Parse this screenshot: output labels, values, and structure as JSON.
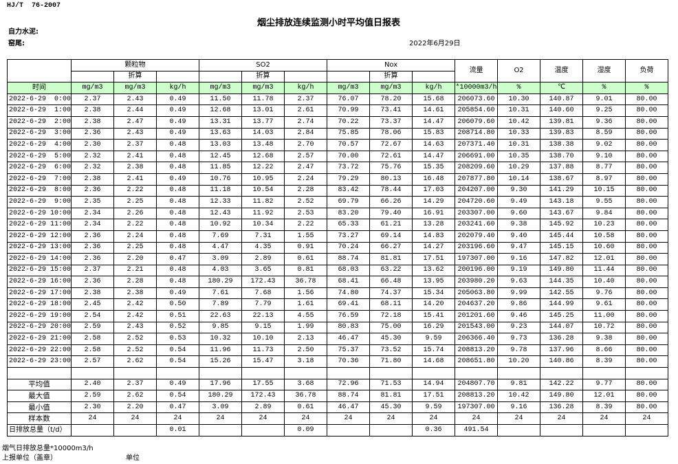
{
  "header": {
    "standard": "HJ/T  76-2007",
    "title": "烟尘排放连续监测小时平均值日报表",
    "company": "自力水泥:",
    "unit": "窑尾:",
    "date": "2022年6月29日"
  },
  "table": {
    "groups": [
      {
        "name": "颗粒物",
        "sub": "折算"
      },
      {
        "name": "SO2",
        "sub": "折算"
      },
      {
        "name": "Nox",
        "sub": "折算"
      }
    ],
    "extra_headers": [
      "流量",
      "O2",
      "温度",
      "湿度",
      "负荷"
    ],
    "time_header": "时间",
    "units": [
      "mg/m3",
      "mg/m3",
      "kg/h",
      "mg/m3",
      "mg/m3",
      "kg/h",
      "mg/m3",
      "mg/m3",
      "kg/h",
      "*10000m3/h",
      "%",
      "℃",
      "%",
      "%"
    ],
    "rows": [
      {
        "time": "2022-6-29  0:00",
        "values": [
          "2.37",
          "2.43",
          "0.49",
          "11.50",
          "11.78",
          "2.37",
          "76.07",
          "78.20",
          "15.68",
          "206073.60",
          "10.30",
          "140.87",
          "9.01",
          "80.00"
        ]
      },
      {
        "time": "2022-6-29  1:00",
        "values": [
          "2.38",
          "2.44",
          "0.49",
          "12.68",
          "13.01",
          "2.61",
          "70.99",
          "73.41",
          "14.61",
          "205854.60",
          "10.31",
          "140.60",
          "9.25",
          "80.00"
        ]
      },
      {
        "time": "2022-6-29  2:00",
        "values": [
          "2.38",
          "2.47",
          "0.49",
          "13.31",
          "13.77",
          "2.74",
          "70.22",
          "73.37",
          "14.47",
          "206079.60",
          "10.42",
          "139.81",
          "9.36",
          "80.00"
        ]
      },
      {
        "time": "2022-6-29  3:00",
        "values": [
          "2.36",
          "2.43",
          "0.49",
          "13.63",
          "14.03",
          "2.84",
          "75.85",
          "78.06",
          "15.83",
          "208714.80",
          "10.33",
          "139.83",
          "8.59",
          "80.00"
        ]
      },
      {
        "time": "2022-6-29  4:00",
        "values": [
          "2.30",
          "2.37",
          "0.48",
          "13.03",
          "13.48",
          "2.70",
          "70.57",
          "72.67",
          "14.63",
          "207371.40",
          "10.31",
          "138.38",
          "9.02",
          "80.00"
        ]
      },
      {
        "time": "2022-6-29  5:00",
        "values": [
          "2.32",
          "2.41",
          "0.48",
          "12.45",
          "12.68",
          "2.57",
          "70.00",
          "72.61",
          "14.47",
          "206691.00",
          "10.35",
          "138.70",
          "9.10",
          "80.00"
        ]
      },
      {
        "time": "2022-6-29  6:00",
        "values": [
          "2.32",
          "2.38",
          "0.48",
          "11.85",
          "12.22",
          "2.47",
          "73.72",
          "75.76",
          "15.35",
          "208209.60",
          "10.29",
          "137.88",
          "8.77",
          "80.00"
        ]
      },
      {
        "time": "2022-6-29  7:00",
        "values": [
          "2.38",
          "2.41",
          "0.49",
          "10.76",
          "10.95",
          "2.24",
          "79.29",
          "80.13",
          "16.48",
          "207877.80",
          "10.14",
          "138.67",
          "8.97",
          "80.00"
        ]
      },
      {
        "time": "2022-6-29  8:00",
        "values": [
          "2.36",
          "2.22",
          "0.48",
          "11.18",
          "10.54",
          "2.28",
          "83.42",
          "78.44",
          "17.03",
          "204207.00",
          "9.30",
          "141.29",
          "10.15",
          "80.00"
        ]
      },
      {
        "time": "2022-6-29  9:00",
        "values": [
          "2.35",
          "2.25",
          "0.48",
          "12.33",
          "11.82",
          "2.52",
          "69.79",
          "66.26",
          "14.29",
          "204720.60",
          "9.49",
          "143.18",
          "9.55",
          "80.00"
        ]
      },
      {
        "time": "2022-6-29 10:00",
        "values": [
          "2.34",
          "2.26",
          "0.48",
          "12.43",
          "11.92",
          "2.53",
          "83.20",
          "79.40",
          "16.91",
          "203307.00",
          "9.60",
          "143.67",
          "9.84",
          "80.00"
        ]
      },
      {
        "time": "2022-6-29 11:00",
        "values": [
          "2.34",
          "2.22",
          "0.48",
          "10.92",
          "10.34",
          "2.22",
          "65.33",
          "61.21",
          "13.28",
          "203241.60",
          "9.38",
          "145.92",
          "10.23",
          "80.00"
        ]
      },
      {
        "time": "2022-6-29 12:00",
        "values": [
          "2.36",
          "2.24",
          "0.48",
          "7.69",
          "7.31",
          "1.55",
          "73.27",
          "69.14",
          "14.83",
          "202079.40",
          "9.40",
          "145.44",
          "10.58",
          "80.00"
        ]
      },
      {
        "time": "2022-6-29 13:00",
        "values": [
          "2.36",
          "2.25",
          "0.48",
          "4.47",
          "4.35",
          "0.91",
          "70.24",
          "66.27",
          "14.27",
          "203196.60",
          "9.47",
          "145.15",
          "10.60",
          "80.00"
        ]
      },
      {
        "time": "2022-6-29 14:00",
        "values": [
          "2.36",
          "2.20",
          "0.47",
          "3.09",
          "2.89",
          "0.61",
          "88.74",
          "81.81",
          "17.51",
          "197307.00",
          "9.16",
          "147.82",
          "12.01",
          "80.00"
        ]
      },
      {
        "time": "2022-6-29 15:00",
        "values": [
          "2.37",
          "2.21",
          "0.48",
          "4.03",
          "3.65",
          "0.81",
          "68.03",
          "63.22",
          "13.62",
          "200196.00",
          "9.19",
          "149.80",
          "11.44",
          "80.00"
        ]
      },
      {
        "time": "2022-6-29 16:00",
        "values": [
          "2.36",
          "2.28",
          "0.48",
          "180.29",
          "172.43",
          "36.78",
          "68.41",
          "66.48",
          "13.95",
          "203980.20",
          "9.63",
          "144.35",
          "10.40",
          "80.00"
        ]
      },
      {
        "time": "2022-6-29 17:00",
        "values": [
          "2.38",
          "2.38",
          "0.49",
          "7.61",
          "7.68",
          "1.56",
          "74.80",
          "74.37",
          "15.34",
          "205063.80",
          "9.99",
          "142.55",
          "9.76",
          "80.00"
        ]
      },
      {
        "time": "2022-6-29 18:00",
        "values": [
          "2.45",
          "2.42",
          "0.50",
          "7.89",
          "7.79",
          "1.61",
          "69.41",
          "68.11",
          "14.20",
          "204637.20",
          "9.86",
          "144.99",
          "9.61",
          "80.00"
        ]
      },
      {
        "time": "2022-6-29 19:00",
        "values": [
          "2.54",
          "2.42",
          "0.51",
          "22.63",
          "22.13",
          "4.55",
          "76.59",
          "72.18",
          "15.41",
          "201201.60",
          "9.46",
          "145.25",
          "11.00",
          "80.00"
        ]
      },
      {
        "time": "2022-6-29 20:00",
        "values": [
          "2.59",
          "2.43",
          "0.52",
          "9.85",
          "9.15",
          "1.99",
          "80.83",
          "75.00",
          "16.29",
          "201543.00",
          "9.23",
          "144.07",
          "10.72",
          "80.00"
        ]
      },
      {
        "time": "2022-6-29 21:00",
        "values": [
          "2.58",
          "2.52",
          "0.53",
          "10.32",
          "10.10",
          "2.13",
          "46.47",
          "45.30",
          "9.59",
          "206366.40",
          "9.73",
          "136.28",
          "9.38",
          "80.00"
        ]
      },
      {
        "time": "2022-6-29 22:00",
        "values": [
          "2.58",
          "2.52",
          "0.54",
          "11.96",
          "11.73",
          "2.50",
          "75.37",
          "73.52",
          "15.74",
          "208813.20",
          "9.78",
          "137.96",
          "8.66",
          "80.00"
        ]
      },
      {
        "time": "2022-6-29 23:00",
        "values": [
          "2.57",
          "2.62",
          "0.54",
          "15.26",
          "15.47",
          "3.18",
          "70.36",
          "71.80",
          "14.68",
          "208651.80",
          "10.20",
          "140.86",
          "8.39",
          "80.00"
        ]
      }
    ],
    "summary": [
      {
        "label": "平均值",
        "values": [
          "2.40",
          "2.37",
          "0.49",
          "17.96",
          "17.55",
          "3.68",
          "72.96",
          "71.53",
          "14.94",
          "204807.70",
          "9.81",
          "142.22",
          "9.77",
          "80.00"
        ]
      },
      {
        "label": "最大值",
        "values": [
          "2.59",
          "2.62",
          "0.54",
          "180.29",
          "172.43",
          "36.78",
          "88.74",
          "81.81",
          "17.51",
          "208813.20",
          "10.42",
          "149.80",
          "12.01",
          "80.00"
        ]
      },
      {
        "label": "最小值",
        "values": [
          "2.30",
          "2.20",
          "0.47",
          "3.09",
          "2.89",
          "0.61",
          "46.47",
          "45.30",
          "9.59",
          "197307.00",
          "9.16",
          "136.28",
          "8.39",
          "80.00"
        ]
      },
      {
        "label": "样本数",
        "values": [
          "24",
          "24",
          "24",
          "24",
          "24",
          "24",
          "24",
          "24",
          "24",
          "24",
          "24",
          "24",
          "24",
          "24"
        ]
      }
    ],
    "daily_total": {
      "label": "日排放总量（t/d）",
      "values": [
        null,
        null,
        "0.01",
        null,
        null,
        "0.09",
        null,
        null,
        "0.36",
        "491.54",
        null,
        null,
        null,
        null
      ]
    }
  },
  "footer": {
    "flue_gas_total": "烟气日排放总量*10000m3/h",
    "reporting_unit": "上报单位（盖章）",
    "unit": "单位"
  }
}
